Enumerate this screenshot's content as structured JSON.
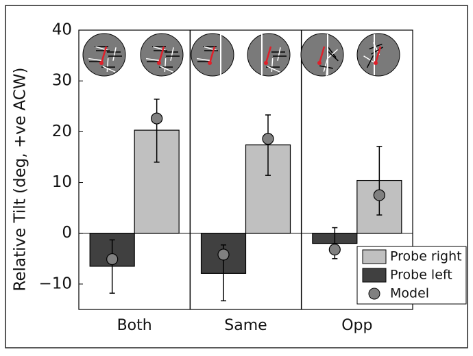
{
  "chart_data": {
    "type": "bar",
    "y_label": "Relative Tilt (deg, +ve ACW)",
    "categories": [
      "Both",
      "Same",
      "Opp"
    ],
    "series": [
      {
        "name": "Probe right",
        "color": "#c0c0c0",
        "values": [
          20.3,
          17.4,
          10.4
        ],
        "error_low": [
          14,
          11.4,
          3.6
        ],
        "error_high": [
          26.4,
          23.3,
          17.1
        ]
      },
      {
        "name": "Probe left",
        "color": "#404040",
        "values": [
          -6.5,
          -7.9,
          -2
        ],
        "error_low": [
          -11.8,
          -13.3,
          -5
        ],
        "error_high": [
          -1.3,
          -2.3,
          1.1
        ]
      },
      {
        "name": "Model",
        "color": "#808080",
        "values": [
          22.6,
          18.6,
          7.5
        ],
        "model_left": [
          -5.1,
          -4.2,
          -3.2
        ]
      }
    ],
    "ylim": [
      -15,
      40
    ],
    "yticks": [
      {
        "value": -10,
        "label": "−10"
      },
      0,
      10,
      20,
      30,
      40
    ],
    "legend": "lower right"
  }
}
